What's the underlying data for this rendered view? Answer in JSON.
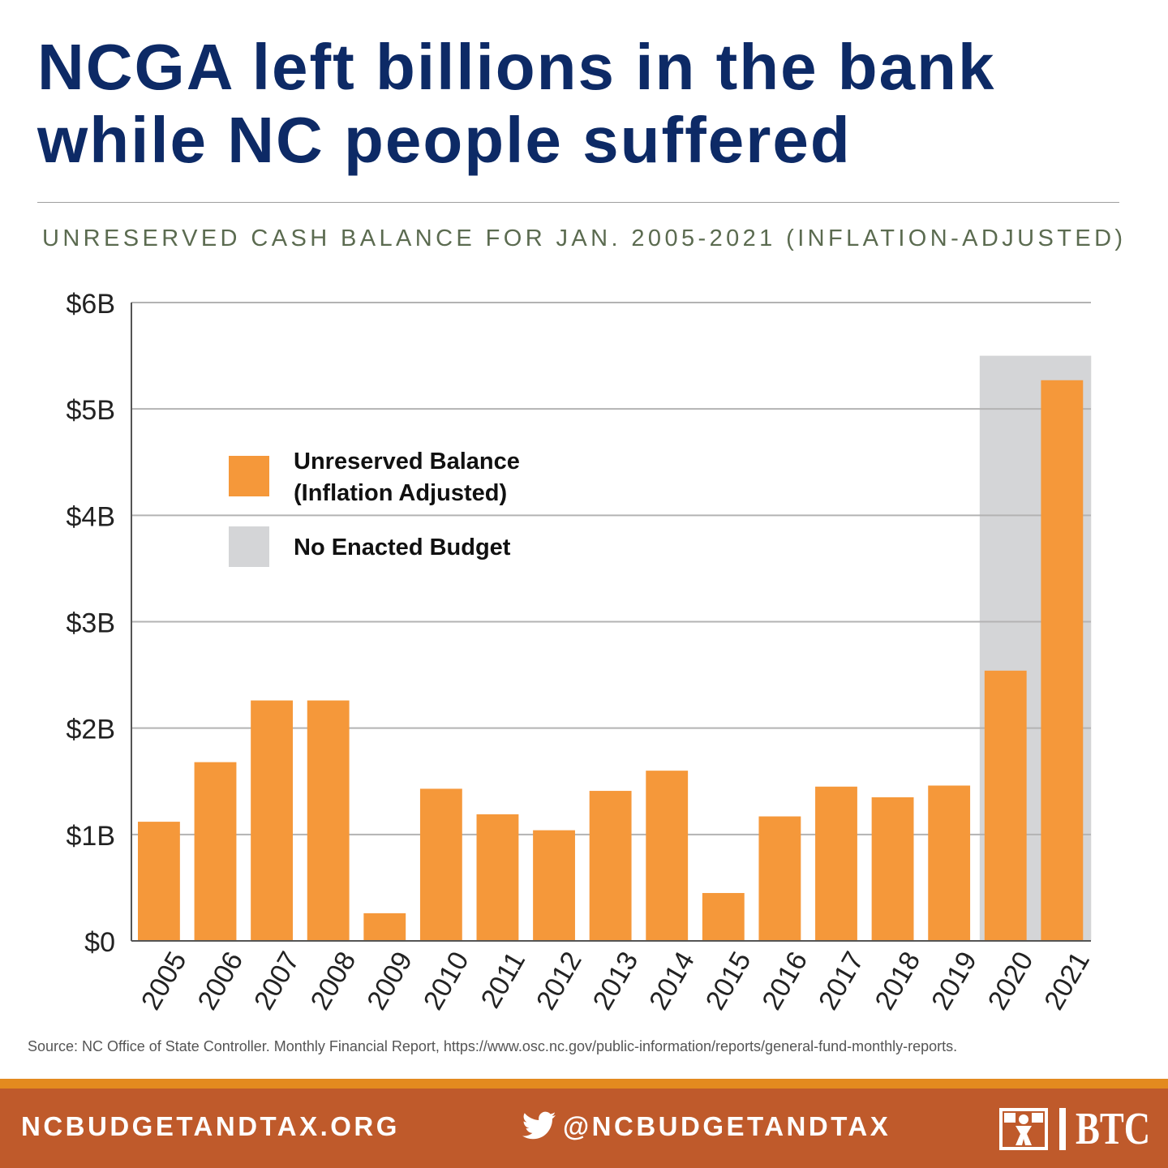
{
  "header": {
    "headline_line1": "NCGA left billions in the bank",
    "headline_line2": "while NC people suffered",
    "subtitle": "UNRESERVED CASH BALANCE FOR JAN. 2005-2021 (INFLATION-ADJUSTED)"
  },
  "chart_data": {
    "type": "bar",
    "title": "UNRESERVED CASH BALANCE FOR JAN. 2005-2021 (INFLATION-ADJUSTED)",
    "categories": [
      "2005",
      "2006",
      "2007",
      "2008",
      "2009",
      "2010",
      "2011",
      "2012",
      "2013",
      "2014",
      "2015",
      "2016",
      "2017",
      "2018",
      "2019",
      "2020",
      "2021"
    ],
    "series": [
      {
        "name": "Unreserved Balance (Inflation Adjusted)",
        "values": [
          1.12,
          1.68,
          2.26,
          2.26,
          0.26,
          1.43,
          1.19,
          1.04,
          1.41,
          1.6,
          0.45,
          1.17,
          1.45,
          1.35,
          1.46,
          2.54,
          5.27
        ],
        "color": "#f5983a"
      }
    ],
    "shaded_categories": [
      "2020",
      "2021"
    ],
    "shaded_value": 5.5,
    "shaded_label": "No Enacted Budget",
    "shaded_color": "#d4d5d7",
    "ylim": [
      0,
      6
    ],
    "yticks": [
      0,
      1,
      2,
      3,
      4,
      5,
      6
    ],
    "ytick_labels": [
      "$0",
      "$1B",
      "$2B",
      "$3B",
      "$4B",
      "$5B",
      "$6B"
    ],
    "xlabel": "",
    "ylabel": "",
    "grid": true,
    "legend": {
      "placement": "top-left",
      "entries": [
        {
          "label_line1": "Unreserved Balance",
          "label_line2": "(Inflation Adjusted)",
          "color": "#f5983a"
        },
        {
          "label_line1": "No Enacted Budget",
          "label_line2": "",
          "color": "#d4d5d7"
        }
      ]
    }
  },
  "source": "Source: NC Office of State Controller. Monthly Financial Report, https://www.osc.nc.gov/public-information/reports/general-fund-monthly-reports.",
  "footer": {
    "website": "NCBUDGETANDTAX.ORG",
    "twitter_handle": "@NCBUDGETANDTAX",
    "logo_text": "BTC",
    "social_icon": "twitter-icon",
    "stripe_color": "#e38a1f",
    "bg_color": "#bf5a2b"
  }
}
